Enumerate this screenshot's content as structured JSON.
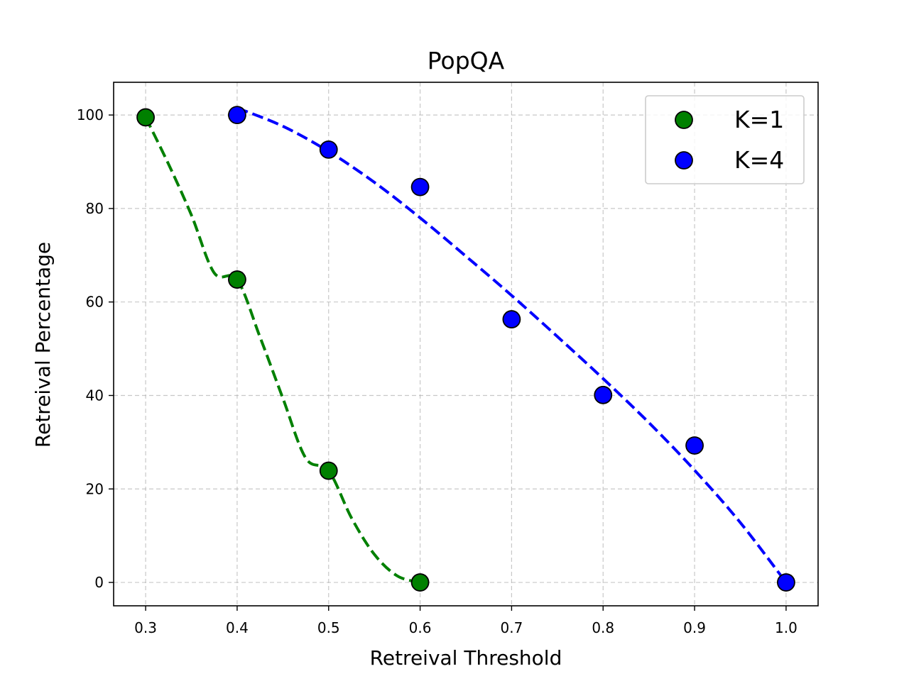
{
  "chart_data": {
    "type": "scatter",
    "title": "PopQA",
    "xlabel": "Retreival Threshold",
    "ylabel": "Retreival Percentage",
    "xlim": [
      0.265,
      1.035
    ],
    "ylim": [
      -5,
      107
    ],
    "xticks": [
      0.3,
      0.4,
      0.5,
      0.6,
      0.7,
      0.8,
      0.9,
      1.0
    ],
    "xtick_labels": [
      "0.3",
      "0.4",
      "0.5",
      "0.6",
      "0.7",
      "0.8",
      "0.9",
      "1.0"
    ],
    "yticks": [
      0,
      20,
      40,
      60,
      80,
      100
    ],
    "ytick_labels": [
      "0",
      "20",
      "40",
      "60",
      "80",
      "100"
    ],
    "grid": true,
    "legend_position": "top-right",
    "series": [
      {
        "name": "K=1",
        "color": "#008000",
        "x": [
          0.3,
          0.4,
          0.5,
          0.6
        ],
        "y": [
          99.5,
          64.8,
          23.9,
          0.0
        ],
        "fit_line": {
          "style": "dashed",
          "x": [
            0.3,
            0.325,
            0.35,
            0.375,
            0.4,
            0.425,
            0.45,
            0.475,
            0.5,
            0.525,
            0.55,
            0.575,
            0.6
          ],
          "y": [
            99.5,
            89.5,
            78.6,
            66.2,
            64.8,
            52.5,
            39.4,
            26.6,
            23.9,
            13.8,
            6.0,
            1.4,
            0.0
          ]
        }
      },
      {
        "name": "K=4",
        "color": "#0000ff",
        "x": [
          0.4,
          0.5,
          0.6,
          0.7,
          0.8,
          0.9,
          1.0
        ],
        "y": [
          100.0,
          92.6,
          84.6,
          56.3,
          40.1,
          29.3,
          0.0
        ],
        "fit_line": {
          "style": "dashed",
          "x": [
            0.4,
            0.45,
            0.5,
            0.55,
            0.6,
            0.65,
            0.7,
            0.75,
            0.8,
            0.85,
            0.9,
            0.95,
            1.0
          ],
          "y": [
            101.5,
            97.6,
            92.2,
            85.6,
            78.0,
            69.8,
            61.4,
            52.6,
            43.6,
            34.2,
            24.0,
            12.8,
            0.0
          ]
        }
      }
    ]
  }
}
